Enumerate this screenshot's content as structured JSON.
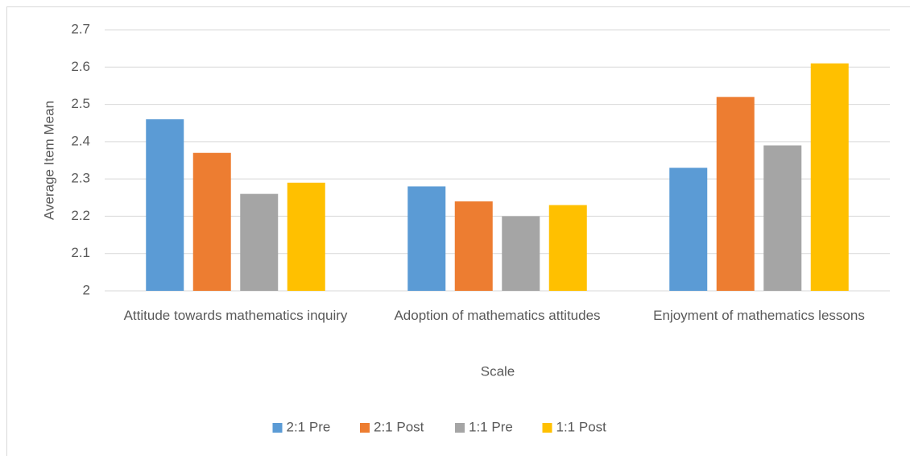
{
  "chart_data": {
    "type": "bar",
    "x_label": "Scale",
    "y_label": "Average Item Mean",
    "categories": [
      "Attitude towards mathematics inquiry",
      "Adoption of mathematics attitudes",
      "Enjoyment of mathematics lessons"
    ],
    "series": [
      {
        "name": "2:1 Pre",
        "color": "#5b9bd5",
        "values": [
          2.46,
          2.28,
          2.33
        ]
      },
      {
        "name": "2:1 Post",
        "color": "#ed7d31",
        "values": [
          2.37,
          2.24,
          2.52
        ]
      },
      {
        "name": "1:1 Pre",
        "color": "#a5a5a5",
        "values": [
          2.26,
          2.2,
          2.39
        ]
      },
      {
        "name": "1:1 Post",
        "color": "#ffc000",
        "values": [
          2.29,
          2.23,
          2.61
        ]
      }
    ],
    "ylim": [
      2,
      2.7
    ],
    "yticks": [
      2,
      2.1,
      2.2,
      2.3,
      2.4,
      2.5,
      2.6,
      2.7
    ],
    "grid": true,
    "legend": "bottom"
  }
}
